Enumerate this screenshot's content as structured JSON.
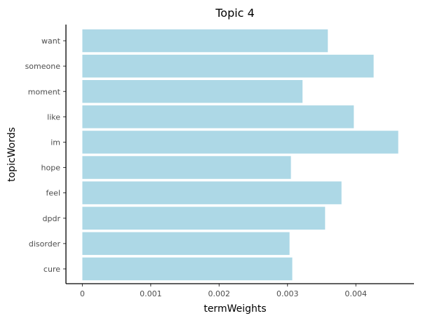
{
  "chart_data": {
    "type": "bar",
    "orientation": "horizontal",
    "title": "Topic 4",
    "xlabel": "termWeights",
    "ylabel": "topicWords",
    "categories": [
      "want",
      "someone",
      "moment",
      "like",
      "im",
      "hope",
      "feel",
      "dpdr",
      "disorder",
      "cure"
    ],
    "values": [
      0.00359,
      0.00426,
      0.00322,
      0.00397,
      0.00462,
      0.00305,
      0.00379,
      0.00355,
      0.00303,
      0.00307
    ],
    "xlim": [
      -0.00024,
      0.00485
    ],
    "xticks": [
      0,
      0.001,
      0.002,
      0.003,
      0.004
    ],
    "xtick_labels": [
      "0",
      "0.001",
      "0.002",
      "0.003",
      "0.004"
    ],
    "bar_color": "#add8e6",
    "grid": false
  }
}
